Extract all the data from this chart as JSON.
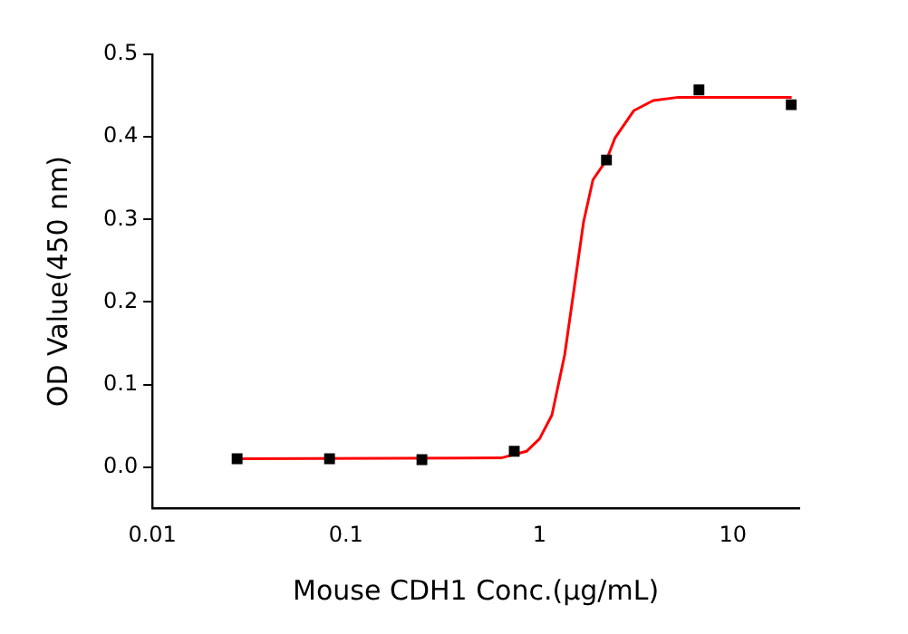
{
  "chart_data": {
    "type": "scatter",
    "xlabel": "Mouse CDH1 Conc.(μg/mL)",
    "ylabel": "OD Value(450 nm)",
    "log": "x",
    "grid": false,
    "legend": false,
    "marker": "square",
    "xlim": [
      0.01,
      22
    ],
    "xticks": [
      0.01,
      0.1,
      1,
      10
    ],
    "ylim": [
      -0.05,
      0.5
    ],
    "yticks": [
      {
        "value": 0,
        "label": "0.0"
      },
      {
        "value": 0.1,
        "label": "0.1"
      },
      {
        "value": 0.2,
        "label": "0.2"
      },
      {
        "value": 0.3,
        "label": "0.3"
      },
      {
        "value": 0.4,
        "label": "0.4"
      },
      {
        "value": 0.5,
        "label": "0.5"
      }
    ],
    "series": [
      {
        "color": "#000000",
        "x": [
          0.0274,
          0.0823,
          0.247,
          0.741,
          2.22,
          6.67,
          20
        ],
        "values": [
          0.01,
          0.01,
          0.009,
          0.019,
          0.372,
          0.457,
          0.439
        ]
      },
      {
        "type": "line",
        "color": "#ff0000",
        "marker": "none",
        "line_style": "solid",
        "x": [
          0.0272,
          0.634,
          0.857,
          1.0,
          1.16,
          1.35,
          1.51,
          1.69,
          1.89,
          2.22,
          2.46,
          3.08,
          3.87,
          5.23,
          20.1
        ],
        "values": [
          0.01,
          0.011,
          0.019,
          0.034,
          0.063,
          0.136,
          0.216,
          0.297,
          0.348,
          0.372,
          0.399,
          0.432,
          0.444,
          0.448,
          0.448
        ]
      }
    ]
  }
}
